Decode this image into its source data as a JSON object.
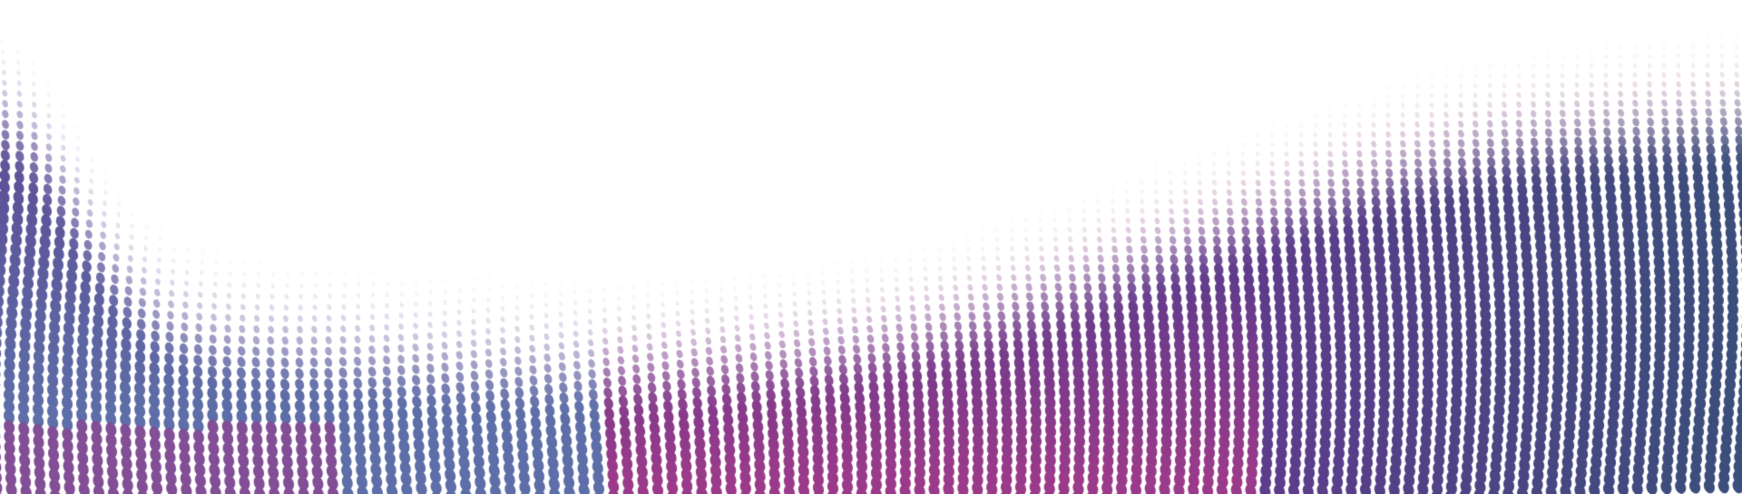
{
  "background": {
    "color": "#ffffff",
    "pattern": "halftone-dot-wave",
    "palette": {
      "magenta": "#9b3a8a",
      "purple": "#5e3c8c",
      "blue": "#5d6ea8",
      "navy": "#3a4f7c",
      "pink": "#e7b9cf",
      "lavender": "#b7a7d2"
    }
  }
}
